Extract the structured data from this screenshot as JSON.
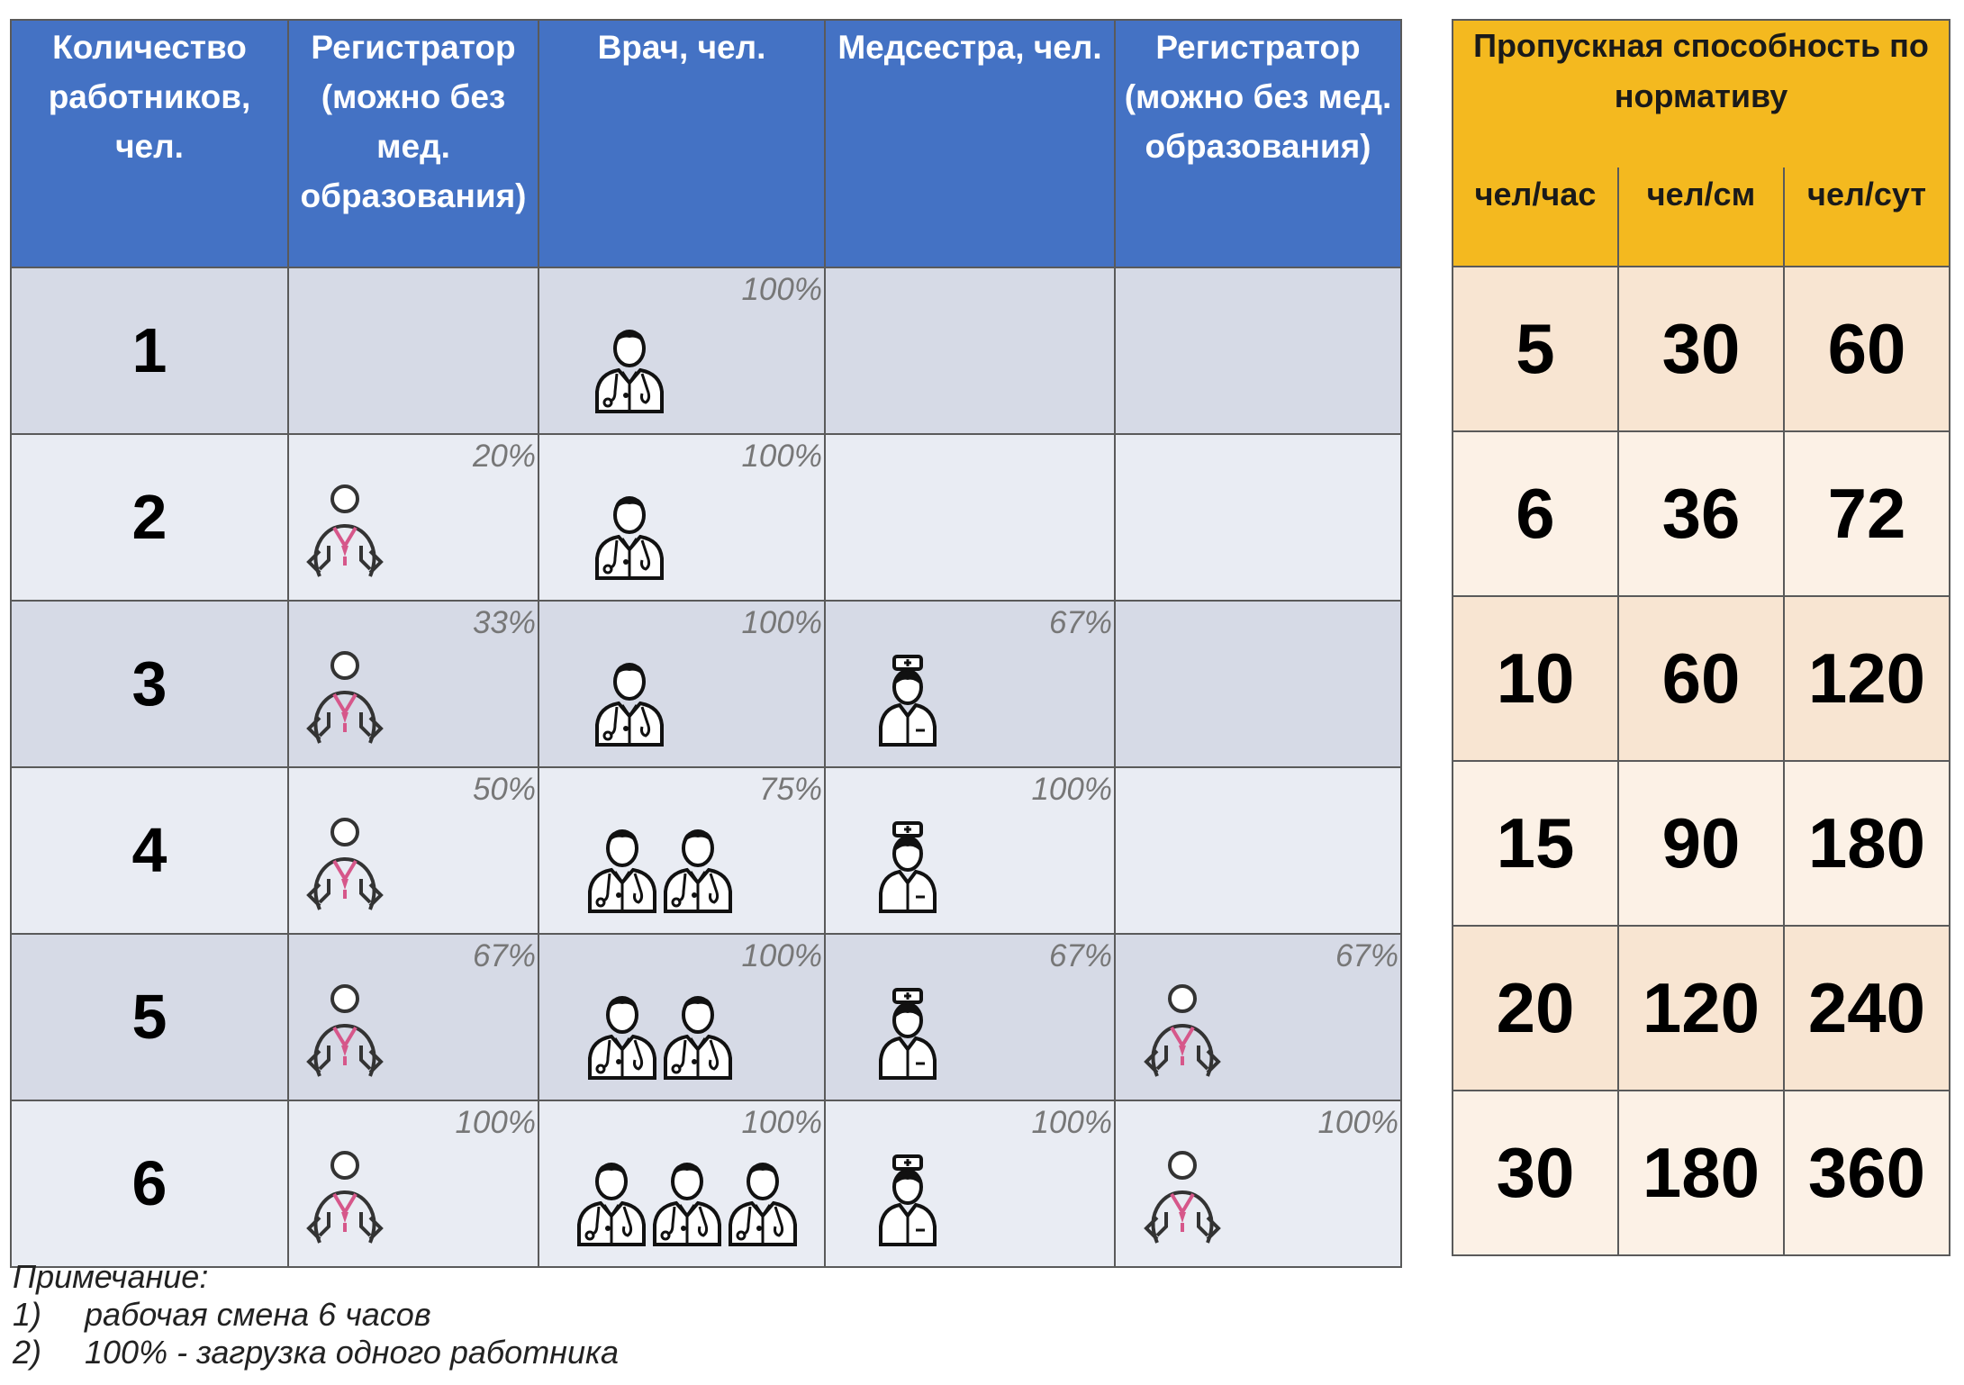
{
  "left_table": {
    "headers": [
      "Количество работников, чел.",
      "Регистратор (можно без мед. образования)",
      "Врач, чел.",
      "Медсестра, чел.",
      "Регистратор (можно без мед. образования)"
    ],
    "rows": [
      {
        "count": "1",
        "registrar": {
          "percent": "",
          "icons": 0
        },
        "doctor": {
          "percent": "100%",
          "icons": 1
        },
        "nurse": {
          "percent": "",
          "icons": 0
        },
        "registrar2": {
          "percent": "",
          "icons": 0
        }
      },
      {
        "count": "2",
        "registrar": {
          "percent": "20%",
          "icons": 1
        },
        "doctor": {
          "percent": "100%",
          "icons": 1
        },
        "nurse": {
          "percent": "",
          "icons": 0
        },
        "registrar2": {
          "percent": "",
          "icons": 0
        }
      },
      {
        "count": "3",
        "registrar": {
          "percent": "33%",
          "icons": 1
        },
        "doctor": {
          "percent": "100%",
          "icons": 1
        },
        "nurse": {
          "percent": "67%",
          "icons": 1
        },
        "registrar2": {
          "percent": "",
          "icons": 0
        }
      },
      {
        "count": "4",
        "registrar": {
          "percent": "50%",
          "icons": 1
        },
        "doctor": {
          "percent": "75%",
          "icons": 2
        },
        "nurse": {
          "percent": "100%",
          "icons": 1
        },
        "registrar2": {
          "percent": "",
          "icons": 0
        }
      },
      {
        "count": "5",
        "registrar": {
          "percent": "67%",
          "icons": 1
        },
        "doctor": {
          "percent": "100%",
          "icons": 2
        },
        "nurse": {
          "percent": "67%",
          "icons": 1
        },
        "registrar2": {
          "percent": "67%",
          "icons": 1
        }
      },
      {
        "count": "6",
        "registrar": {
          "percent": "100%",
          "icons": 1
        },
        "doctor": {
          "percent": "100%",
          "icons": 3
        },
        "nurse": {
          "percent": "100%",
          "icons": 1
        },
        "registrar2": {
          "percent": "100%",
          "icons": 1
        }
      }
    ],
    "icon_names": {
      "registrar": "registrar-person-icon",
      "doctor": "doctor-icon",
      "nurse": "nurse-icon"
    }
  },
  "right_table": {
    "title": "Пропускная способность по нормативу",
    "units": [
      "чел/час",
      "чел/см",
      "чел/сут"
    ],
    "rows": [
      [
        "5",
        "30",
        "60"
      ],
      [
        "6",
        "36",
        "72"
      ],
      [
        "10",
        "60",
        "120"
      ],
      [
        "15",
        "90",
        "180"
      ],
      [
        "20",
        "120",
        "240"
      ],
      [
        "30",
        "180",
        "360"
      ]
    ]
  },
  "note": {
    "title": "Примечание:",
    "items": [
      {
        "num": "1)",
        "text": "рабочая смена 6 часов"
      },
      {
        "num": "2)",
        "text": "100% - загрузка одного работника"
      }
    ]
  },
  "colors": {
    "header_blue": "#4472c4",
    "header_gold": "#f4b91f",
    "row_dark": "#d6dae6",
    "row_light": "#e9ecf3",
    "peach_dark": "#f8e5d2",
    "peach_light": "#fcf1e6",
    "registrar_badge": "#d6578a"
  }
}
